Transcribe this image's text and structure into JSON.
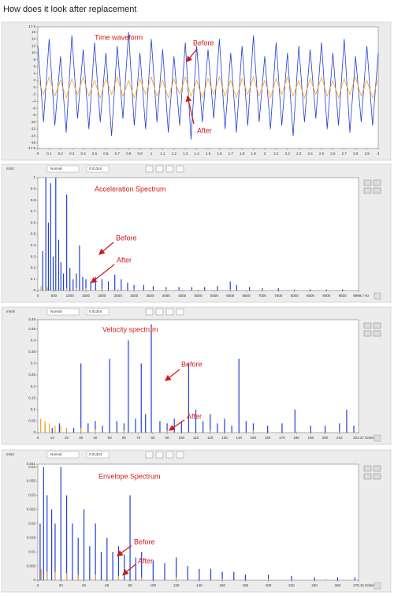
{
  "title": "How does it look after replacement",
  "chart_data": [
    {
      "type": "line",
      "annotations": [
        "Time waveform",
        "Before",
        "After"
      ],
      "xlim": [
        0,
        3
      ],
      "ylim": [
        -17.6,
        17.5
      ],
      "xticks": [
        0,
        0.1,
        0.2,
        0.3,
        0.4,
        0.5,
        0.6,
        0.7,
        0.8,
        0.9,
        1,
        1.1,
        1.2,
        1.3,
        1.4,
        1.5,
        1.6,
        1.7,
        1.8,
        1.9,
        2,
        2.1,
        2.2,
        2.3,
        2.4,
        2.5,
        2.6,
        2.7,
        2.8,
        2.9,
        3
      ],
      "yticks": [
        17.5,
        16,
        14,
        12,
        10,
        8,
        6,
        4,
        2,
        0,
        -2,
        -4,
        -6,
        -8,
        -10,
        -12,
        -14,
        -16,
        -17.6
      ],
      "series": [
        {
          "color": "#1f3fd6",
          "x": [
            0,
            0.05,
            0.1,
            0.15,
            0.2,
            0.25,
            0.3,
            0.35,
            0.4,
            0.45,
            0.5,
            0.55,
            0.6,
            0.65,
            0.7,
            0.75,
            0.8,
            0.85,
            0.9,
            0.95,
            1,
            1.05,
            1.1,
            1.15,
            1.2,
            1.25,
            1.3,
            1.35,
            1.4,
            1.45,
            1.5,
            1.55,
            1.6,
            1.65,
            1.7,
            1.75,
            1.8,
            1.85,
            1.9,
            1.95,
            2,
            2.05,
            2.1,
            2.15,
            2.2,
            2.25,
            2.3,
            2.35,
            2.4,
            2.45,
            2.5,
            2.55,
            2.6,
            2.65,
            2.7,
            2.75,
            2.8,
            2.85,
            2.9,
            2.95,
            3
          ],
          "values": [
            12,
            -10,
            14,
            -11,
            9,
            -13,
            15,
            -9,
            11,
            -12,
            13,
            -10,
            10,
            -14,
            12,
            -9,
            16,
            -11,
            10,
            -12,
            14,
            -10,
            11,
            -13,
            9,
            -11,
            13,
            -15,
            12,
            -10,
            11,
            -9,
            14,
            -12,
            10,
            -13,
            12,
            -11,
            15,
            -10,
            9,
            -12,
            13,
            -11,
            10,
            -14,
            12,
            -10,
            11,
            -9,
            13,
            -12,
            10,
            -11,
            14,
            -13,
            9,
            -10,
            12,
            -11,
            10
          ]
        },
        {
          "color": "#f5a623",
          "x": [
            0,
            0.05,
            0.1,
            0.15,
            0.2,
            0.25,
            0.3,
            0.35,
            0.4,
            0.45,
            0.5,
            0.55,
            0.6,
            0.65,
            0.7,
            0.75,
            0.8,
            0.85,
            0.9,
            0.95,
            1,
            1.05,
            1.1,
            1.15,
            1.2,
            1.25,
            1.3,
            1.35,
            1.4,
            1.45,
            1.5,
            1.55,
            1.6,
            1.65,
            1.7,
            1.75,
            1.8,
            1.85,
            1.9,
            1.95,
            2,
            2.05,
            2.1,
            2.15,
            2.2,
            2.25,
            2.3,
            2.35,
            2.4,
            2.45,
            2.5,
            2.55,
            2.6,
            2.65,
            2.7,
            2.75,
            2.8,
            2.85,
            2.9,
            2.95,
            3
          ],
          "values": [
            2.5,
            -2,
            3,
            -2.5,
            2,
            -3,
            2.5,
            -2,
            3,
            -2.5,
            2,
            -3,
            2.5,
            -2,
            3,
            -2.5,
            2,
            -3,
            2.5,
            -2,
            3,
            -2.5,
            2,
            -3,
            2.5,
            -2,
            3,
            -2.5,
            2,
            -3,
            2.5,
            -2,
            3,
            -2.5,
            2,
            -3,
            2.5,
            -2,
            3,
            -2.5,
            2,
            -3,
            2.5,
            -2,
            3,
            -2.5,
            2,
            -3,
            2.5,
            -2,
            3,
            -2.5,
            2,
            -3,
            2.5,
            -2,
            3,
            -2.5,
            2,
            -3,
            2.5
          ]
        }
      ]
    },
    {
      "type": "stem",
      "y_unit": "m/s2",
      "x_unit": "Hz",
      "toolbar": [
        "Normal",
        "0.01344"
      ],
      "annotations": [
        "Acceleration Spectrum",
        "Before",
        "After"
      ],
      "xlim": [
        0,
        9999.7
      ],
      "ylim": [
        0,
        1
      ],
      "xticks": [
        0,
        500,
        1000,
        1500,
        2000,
        2500,
        3000,
        3500,
        4000,
        4500,
        5000,
        5500,
        6000,
        6500,
        7000,
        7500,
        8000,
        8500,
        9000,
        9500,
        9999.7
      ],
      "yticks": [
        0,
        0.1,
        0.2,
        0.3,
        0.4,
        0.5,
        0.6,
        0.7,
        0.8,
        0.9,
        1
      ],
      "series": [
        {
          "color": "#1f3fd6",
          "x": [
            150,
            250,
            330,
            400,
            480,
            560,
            650,
            720,
            800,
            900,
            1000,
            1100,
            1200,
            1300,
            1400,
            1500,
            1650,
            1800,
            2000,
            2200,
            2400,
            2600,
            2800,
            3000,
            3300,
            3600,
            4000,
            4400,
            4800,
            5200,
            5600,
            6000,
            6200,
            6600,
            7000,
            7500,
            8000,
            8500,
            9000,
            9500
          ],
          "values": [
            0.35,
            1,
            0.6,
            0.95,
            0.3,
            1,
            0.45,
            0.25,
            0.15,
            0.85,
            0.2,
            0.1,
            0.15,
            0.4,
            0.12,
            0.1,
            0.08,
            0.12,
            0.1,
            0.08,
            0.14,
            0.1,
            0.07,
            0.05,
            0.05,
            0.04,
            0.03,
            0.03,
            0.03,
            0.03,
            0.04,
            0.08,
            0.05,
            0.03,
            0.02,
            0.02,
            0.01,
            0.01,
            0.01,
            0.01
          ]
        },
        {
          "color": "#f5a623",
          "x": [
            100,
            300,
            500,
            700,
            900,
            1200,
            1500,
            2000,
            2500,
            3000,
            4000,
            5000,
            6000,
            7000,
            8000,
            9000
          ],
          "values": [
            0.04,
            0.03,
            0.03,
            0.02,
            0.02,
            0.02,
            0.02,
            0.015,
            0.015,
            0.01,
            0.01,
            0.01,
            0.01,
            0.005,
            0.005,
            0.005
          ]
        }
      ]
    },
    {
      "type": "stem",
      "y_unit": "mm/s",
      "x_unit": "Order",
      "toolbar": [
        "Normal",
        "0.01344"
      ],
      "annotations": [
        "Velocity spectrum",
        "Before",
        "After"
      ],
      "xlim": [
        0,
        223.27
      ],
      "ylim": [
        0,
        0.49
      ],
      "xticks": [
        0,
        10,
        20,
        30,
        40,
        50,
        60,
        70,
        80,
        90,
        100,
        110,
        120,
        130,
        140,
        150,
        160,
        170,
        180,
        190,
        200,
        210,
        223.27
      ],
      "yticks": [
        0,
        0.05,
        0.1,
        0.15,
        0.2,
        0.25,
        0.3,
        0.35,
        0.4,
        0.45,
        0.49
      ],
      "series": [
        {
          "color": "#1f3fd6",
          "x": [
            5,
            10,
            15,
            20,
            25,
            30,
            35,
            40,
            45,
            50,
            55,
            60,
            63,
            68,
            72,
            75,
            79,
            85,
            90,
            95,
            100,
            105,
            110,
            115,
            120,
            125,
            130,
            135,
            140,
            145,
            150,
            160,
            170,
            179,
            190,
            200,
            210,
            215,
            220
          ],
          "values": [
            0.03,
            0.02,
            0.04,
            0.02,
            0.02,
            0.3,
            0.04,
            0.05,
            0.03,
            0.32,
            0.05,
            0.04,
            0.4,
            0.06,
            0.3,
            0.08,
            0.47,
            0.05,
            0.04,
            0.06,
            0.05,
            0.3,
            0.1,
            0.05,
            0.08,
            0.04,
            0.06,
            0.03,
            0.32,
            0.05,
            0.04,
            0.03,
            0.04,
            0.1,
            0.03,
            0.03,
            0.04,
            0.1,
            0.03
          ]
        },
        {
          "color": "#f5a623",
          "x": [
            2,
            5,
            8,
            12,
            16,
            20,
            30,
            40,
            60,
            90,
            120,
            150,
            180,
            210
          ],
          "values": [
            0.06,
            0.05,
            0.04,
            0.03,
            0.03,
            0.02,
            0.02,
            0.015,
            0.01,
            0.01,
            0.01,
            0.01,
            0.005,
            0.005
          ]
        }
      ]
    },
    {
      "type": "stem",
      "y_unit": "m/s2",
      "x_unit": "Order",
      "toolbar": [
        "Normal",
        "0.01344"
      ],
      "annotations": [
        "Envelope Spectrum",
        "Before",
        "After"
      ],
      "xlim": [
        0,
        278.16
      ],
      "ylim": [
        0,
        0.041
      ],
      "xticks": [
        0,
        20,
        40,
        60,
        80,
        100,
        120,
        140,
        160,
        180,
        200,
        220,
        240,
        260,
        278.16
      ],
      "yticks": [
        0,
        0.005,
        0.01,
        0.015,
        0.02,
        0.025,
        0.03,
        0.035,
        0.04,
        0.041
      ],
      "series": [
        {
          "color": "#1f3fd6",
          "x": [
            2,
            5,
            8,
            12,
            15,
            20,
            25,
            30,
            35,
            40,
            45,
            50,
            55,
            60,
            65,
            70,
            75,
            80,
            85,
            90,
            100,
            110,
            120,
            130,
            140,
            150,
            160,
            170,
            180,
            200,
            220,
            240,
            260,
            275
          ],
          "values": [
            0.02,
            0.04,
            0.03,
            0.025,
            0.02,
            0.04,
            0.03,
            0.02,
            0.015,
            0.025,
            0.012,
            0.02,
            0.01,
            0.015,
            0.01,
            0.012,
            0.009,
            0.03,
            0.008,
            0.01,
            0.007,
            0.006,
            0.008,
            0.005,
            0.004,
            0.004,
            0.003,
            0.003,
            0.002,
            0.002,
            0.0015,
            0.001,
            0.001,
            0.001
          ]
        },
        {
          "color": "#f5a623",
          "x": [
            3,
            8,
            15,
            25,
            35,
            50,
            70,
            90,
            120,
            160,
            200,
            250
          ],
          "values": [
            0.004,
            0.003,
            0.003,
            0.0025,
            0.002,
            0.002,
            0.0015,
            0.001,
            0.001,
            0.0005,
            0.0005,
            0.0005
          ]
        }
      ]
    }
  ]
}
